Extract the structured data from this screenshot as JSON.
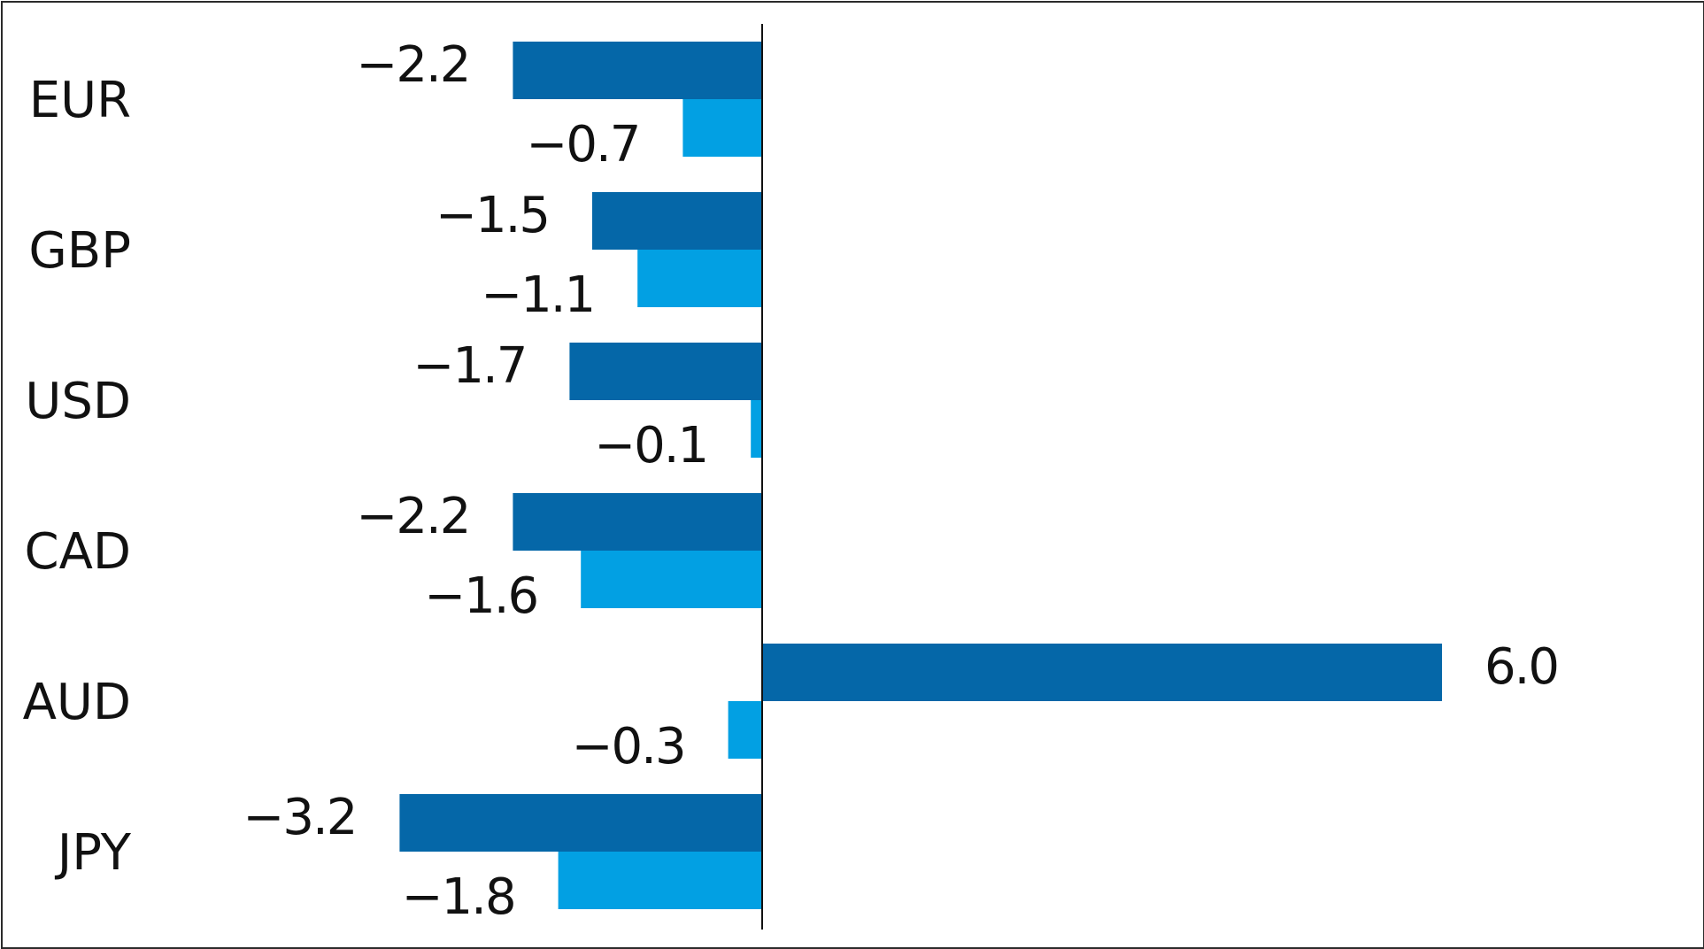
{
  "chart_data": {
    "type": "bar",
    "orientation": "horizontal",
    "categories": [
      "EUR",
      "GBP",
      "USD",
      "CAD",
      "AUD",
      "JPY"
    ],
    "series": [
      {
        "values": [
          -2.2,
          -1.5,
          -1.7,
          -2.2,
          6.0,
          -3.2
        ],
        "value_labels": [
          "−2.2",
          "−1.5",
          "−1.7",
          "−2.2",
          "6.0",
          "−3.2"
        ],
        "color": "#0567a8"
      },
      {
        "values": [
          -0.7,
          -1.1,
          -0.1,
          -1.6,
          -0.3,
          -1.8
        ],
        "value_labels": [
          "−0.7",
          "−1.1",
          "−0.1",
          "−1.6",
          "−0.3",
          "−1.8"
        ],
        "color": "#02a0e3"
      }
    ],
    "xlim": [
      -6.57,
      8.04
    ],
    "grid": false,
    "legend": "none"
  }
}
